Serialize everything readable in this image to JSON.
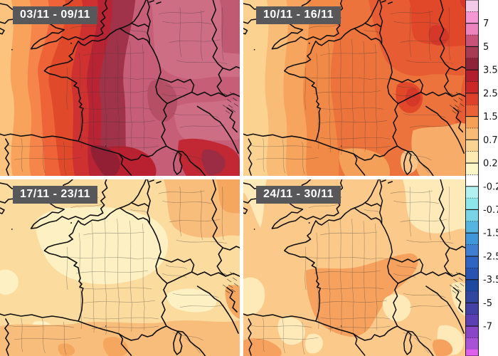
{
  "panels": [
    {
      "label": "03/11 - 09/11",
      "approx_anomaly": "+2.5 to +7 (very warm, deep reds over France and central Europe)"
    },
    {
      "label": "10/11 - 16/11",
      "approx_anomaly": "+0.75 to +3.5 (orange, warmer toward Germany/Alps)"
    },
    {
      "label": "17/11 - 23/11",
      "approx_anomaly": "+0.25 to +1.5 (pale cream over northern France)"
    },
    {
      "label": "24/11 - 30/11",
      "approx_anomaly": "+0.25 to +1.5 (light orange band across southern France)"
    }
  ],
  "colorbar": {
    "ticks": [
      "7",
      "5",
      "3.5",
      "2.5",
      "1.5",
      "0.75",
      "0.25",
      "-0.25",
      "-0.75",
      "-1.5",
      "-2.5",
      "-3.5",
      "-5",
      "-7"
    ],
    "segment_height": 16.36,
    "segments": [
      "#f2cbe9",
      "#f697d3",
      "#ee84bf",
      "#c85278",
      "#a93a53",
      "#8f2339",
      "#b21e2d",
      "#cb2727",
      "#df402a",
      "#ec6236",
      "#f5a055",
      "#f9ba76",
      "#fbd392",
      "#fdeab2",
      "#fdf6c8",
      "#ffffff",
      "#b2f1ef",
      "#8ce7ea",
      "#79d4e8",
      "#54b5e0",
      "#3f97da",
      "#3f7ed0",
      "#2f64c2",
      "#2853b2",
      "#1d4aa0",
      "#31479f",
      "#4340a6",
      "#5c3fb4",
      "#8a46c8",
      "#a852d8",
      "#e060ee"
    ],
    "frame_color": "#141414",
    "background": "#ffffff"
  },
  "theme": {
    "label_box_bg": "#58585a",
    "label_box_text": "#ffffff",
    "coastline_color": "#0e0e0e"
  },
  "map_data": {
    "type": "anomaly-choropleth-maps",
    "region": "Western Europe centred on France (British Isles, Iberia, Alps, Italy visible)",
    "variable": "weekly temperature anomaly",
    "panel_count": 4,
    "scale_range": [
      -7,
      7
    ]
  }
}
